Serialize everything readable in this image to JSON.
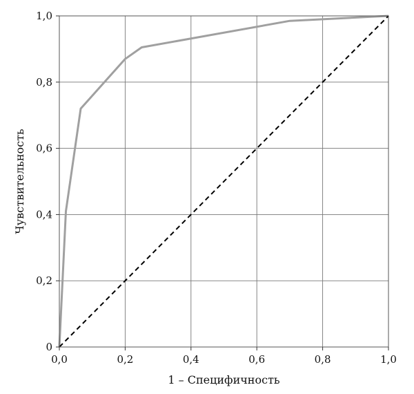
{
  "chart_data": {
    "type": "line",
    "title": "",
    "xlabel": "1 – Специфичность",
    "ylabel": "Чувствительность",
    "xlim": [
      0,
      1
    ],
    "ylim": [
      0,
      1
    ],
    "grid": true,
    "legend": "none",
    "x_ticks": [
      {
        "value": 0.0,
        "label": "0,0"
      },
      {
        "value": 0.2,
        "label": "0,2"
      },
      {
        "value": 0.4,
        "label": "0,4"
      },
      {
        "value": 0.6,
        "label": "0,6"
      },
      {
        "value": 0.8,
        "label": "0,8"
      },
      {
        "value": 1.0,
        "label": "1,0"
      }
    ],
    "y_ticks": [
      {
        "value": 0.0,
        "label": "0"
      },
      {
        "value": 0.2,
        "label": "0,2"
      },
      {
        "value": 0.4,
        "label": "0,4"
      },
      {
        "value": 0.6,
        "label": "0,6"
      },
      {
        "value": 0.8,
        "label": "0,8"
      },
      {
        "value": 1.0,
        "label": "1,0"
      }
    ],
    "series": [
      {
        "style": "solid",
        "color": "#a0a0a0",
        "points": [
          {
            "x": 0.0,
            "y": 0.0
          },
          {
            "x": 0.02,
            "y": 0.41
          },
          {
            "x": 0.065,
            "y": 0.72
          },
          {
            "x": 0.2,
            "y": 0.87
          },
          {
            "x": 0.25,
            "y": 0.905
          },
          {
            "x": 0.7,
            "y": 0.985
          },
          {
            "x": 1.0,
            "y": 1.0
          }
        ]
      },
      {
        "style": "dashed",
        "color": "#000000",
        "points": [
          {
            "x": 0.0,
            "y": 0.0
          },
          {
            "x": 1.0,
            "y": 1.0
          }
        ]
      }
    ]
  }
}
